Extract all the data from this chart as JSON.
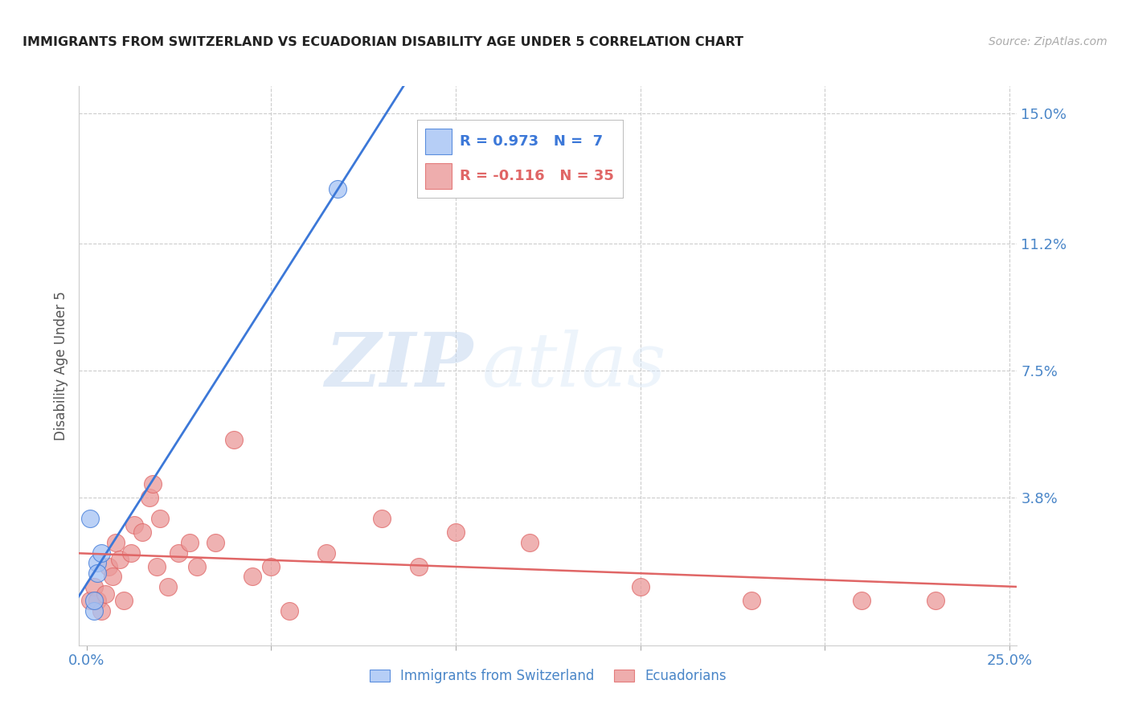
{
  "title": "IMMIGRANTS FROM SWITZERLAND VS ECUADORIAN DISABILITY AGE UNDER 5 CORRELATION CHART",
  "source": "Source: ZipAtlas.com",
  "ylabel": "Disability Age Under 5",
  "xlim": [
    -0.002,
    0.252
  ],
  "ylim": [
    -0.005,
    0.158
  ],
  "yticks": [
    0.0,
    0.038,
    0.075,
    0.112,
    0.15
  ],
  "ytick_labels": [
    "",
    "3.8%",
    "7.5%",
    "11.2%",
    "15.0%"
  ],
  "xticks": [
    0.0,
    0.05,
    0.1,
    0.15,
    0.2,
    0.25
  ],
  "xtick_labels": [
    "0.0%",
    "",
    "",
    "",
    "",
    "25.0%"
  ],
  "swiss_color": "#a4c2f4",
  "ecuador_color": "#ea9999",
  "swiss_line_color": "#3c78d8",
  "ecuador_line_color": "#e06666",
  "legend_swiss_label": "Immigrants from Switzerland",
  "legend_ecuador_label": "Ecuadorians",
  "legend_R_swiss": "R = 0.973",
  "legend_N_swiss": "N =  7",
  "legend_R_ecuador": "R = -0.116",
  "legend_N_ecuador": "N = 35",
  "watermark_zip": "ZIP",
  "watermark_atlas": "atlas",
  "swiss_x": [
    0.001,
    0.002,
    0.002,
    0.003,
    0.003,
    0.004,
    0.068
  ],
  "swiss_y": [
    0.032,
    0.005,
    0.008,
    0.019,
    0.016,
    0.022,
    0.128
  ],
  "ecuador_x": [
    0.001,
    0.002,
    0.003,
    0.004,
    0.005,
    0.006,
    0.007,
    0.008,
    0.009,
    0.01,
    0.012,
    0.013,
    0.015,
    0.017,
    0.018,
    0.019,
    0.02,
    0.022,
    0.025,
    0.028,
    0.03,
    0.035,
    0.04,
    0.045,
    0.05,
    0.055,
    0.065,
    0.08,
    0.09,
    0.1,
    0.12,
    0.15,
    0.18,
    0.21,
    0.23
  ],
  "ecuador_y": [
    0.008,
    0.012,
    0.008,
    0.005,
    0.01,
    0.018,
    0.015,
    0.025,
    0.02,
    0.008,
    0.022,
    0.03,
    0.028,
    0.038,
    0.042,
    0.018,
    0.032,
    0.012,
    0.022,
    0.025,
    0.018,
    0.025,
    0.055,
    0.015,
    0.018,
    0.005,
    0.022,
    0.032,
    0.018,
    0.028,
    0.025,
    0.012,
    0.008,
    0.008,
    0.008
  ],
  "background_color": "#ffffff",
  "plot_background": "#ffffff",
  "grid_color": "#cccccc",
  "axis_label_color": "#4a86c8",
  "title_color": "#222222"
}
